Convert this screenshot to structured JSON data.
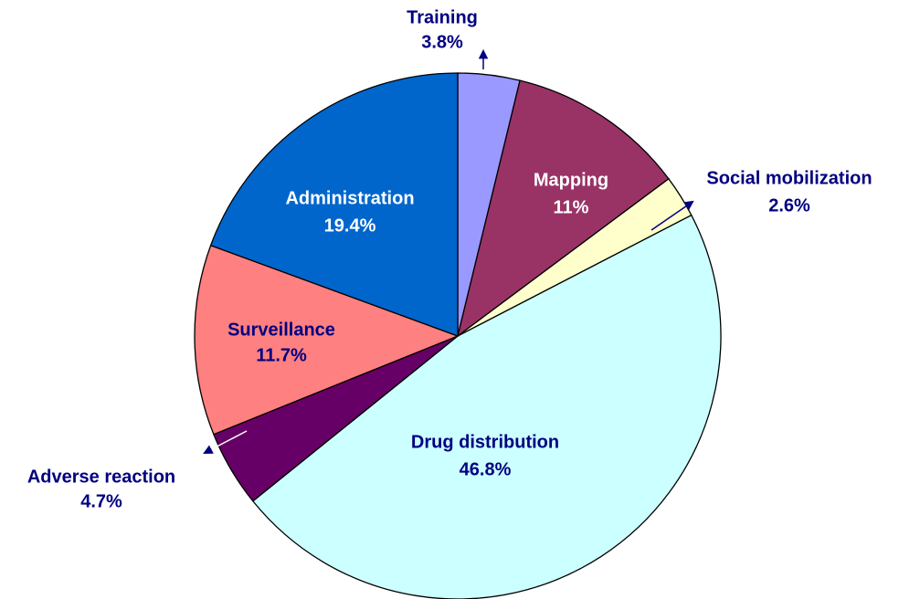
{
  "chart_data": {
    "type": "pie",
    "categories": [
      "Training",
      "Mapping",
      "Social mobilization",
      "Drug distribution",
      "Adverse reaction",
      "Surveillance",
      "Administration"
    ],
    "values": [
      3.8,
      11,
      2.6,
      46.8,
      4.7,
      11.7,
      19.4
    ],
    "value_labels": [
      "3.8%",
      "11%",
      "2.6%",
      "46.8%",
      "4.7%",
      "11.7%",
      "19.4%"
    ],
    "colors": [
      "#9999ff",
      "#993366",
      "#ffffcc",
      "#ccffff",
      "#660066",
      "#ff8080",
      "#0066cc"
    ]
  }
}
